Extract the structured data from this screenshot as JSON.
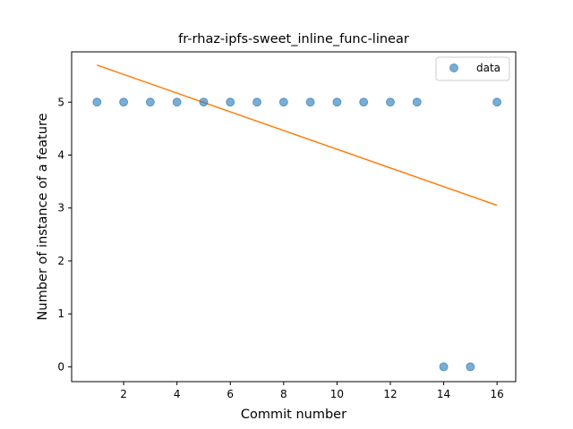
{
  "chart_data": {
    "type": "scatter",
    "title": "fr-rhaz-ipfs-sweet_inline_func-linear",
    "xlabel": "Commit number",
    "ylabel": "Number of instance of a feature",
    "xlim": [
      0.05,
      16.7
    ],
    "ylim": [
      -0.28,
      5.95
    ],
    "xticks": [
      2,
      4,
      6,
      8,
      10,
      12,
      14,
      16
    ],
    "yticks": [
      0,
      1,
      2,
      3,
      4,
      5
    ],
    "grid": false,
    "legend_position": "top-right",
    "series": [
      {
        "name": "data",
        "kind": "scatter",
        "color": "#1f77b4",
        "x": [
          1,
          2,
          3,
          4,
          5,
          6,
          7,
          8,
          9,
          10,
          11,
          12,
          13,
          14,
          15,
          16
        ],
        "y": [
          5,
          5,
          5,
          5,
          5,
          5,
          5,
          5,
          5,
          5,
          5,
          5,
          5,
          0,
          0,
          5
        ]
      },
      {
        "kind": "line",
        "color": "#ff7f0e",
        "x": [
          1,
          16
        ],
        "y": [
          5.7,
          3.05
        ]
      }
    ]
  }
}
